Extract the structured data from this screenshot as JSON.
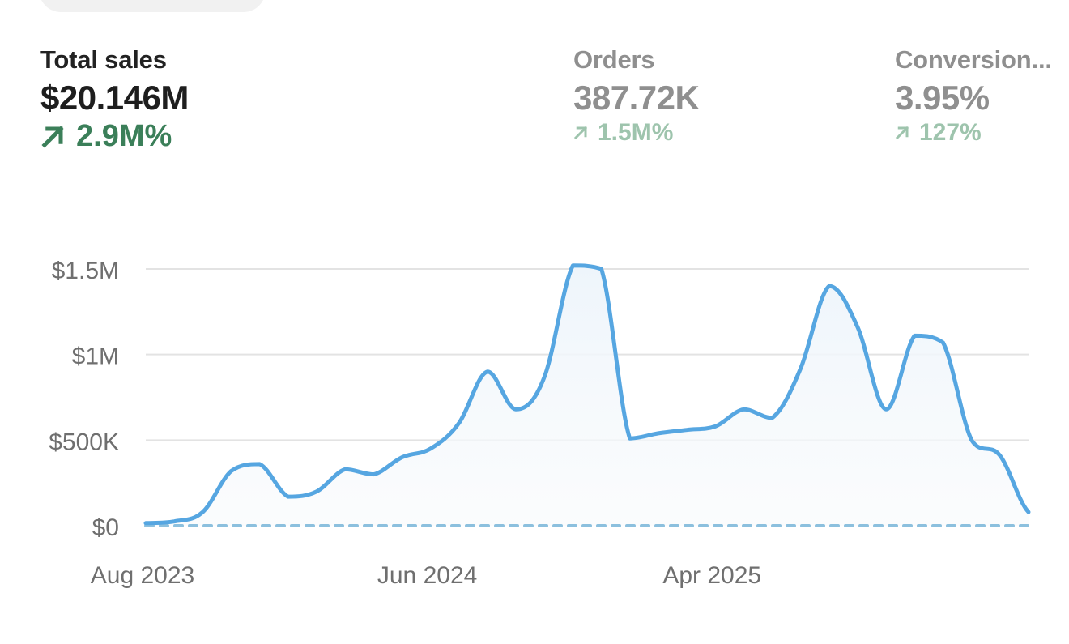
{
  "metrics": {
    "sales": {
      "label": "Total sales",
      "value": "$20.146M",
      "change": "2.9M%"
    },
    "orders": {
      "label": "Orders",
      "value": "387.72K",
      "change": "1.5M%"
    },
    "conversion": {
      "label": "Conversion...",
      "value": "3.95%",
      "change": "127%"
    }
  },
  "icons": {
    "trend": "arrow-up-right-icon"
  },
  "colors": {
    "line": "#56a6e1",
    "fill": "#eef5fb",
    "baseline": "#8cc0de",
    "grid": "#e3e3e3",
    "axis_text": "#6f6f6f",
    "positive_primary": "#3b7f59",
    "positive_muted": "#9ec4ad"
  },
  "chart_data": {
    "type": "area",
    "title": "",
    "xlabel": "",
    "ylabel": "",
    "ylim": [
      0,
      1500000
    ],
    "y_ticks": [
      0,
      500000,
      1000000,
      1500000
    ],
    "y_tick_labels": [
      "$0",
      "$500K",
      "$1M",
      "$1.5M"
    ],
    "x_tick_labels": [
      "Aug 2023",
      "Jun 2024",
      "Apr 2025"
    ],
    "x_tick_index": [
      0,
      10,
      20
    ],
    "grid": true,
    "legend": "none",
    "x": [
      "2023-08",
      "2023-09",
      "2023-10",
      "2023-11",
      "2023-12",
      "2024-01",
      "2024-02",
      "2024-03",
      "2024-04",
      "2024-05",
      "2024-06",
      "2024-07",
      "2024-08",
      "2024-09",
      "2024-10",
      "2024-11",
      "2024-12",
      "2025-01",
      "2025-02",
      "2025-03",
      "2025-04",
      "2025-05",
      "2025-06",
      "2025-07",
      "2025-08",
      "2025-09",
      "2025-10",
      "2025-11",
      "2025-12",
      "2026-01",
      "2026-02",
      "2026-03"
    ],
    "series": [
      {
        "values": [
          15000,
          25000,
          80000,
          320000,
          360000,
          170000,
          200000,
          330000,
          300000,
          400000,
          450000,
          600000,
          900000,
          680000,
          870000,
          1520000,
          1500000,
          510000,
          540000,
          560000,
          580000,
          680000,
          630000,
          920000,
          1400000,
          1160000,
          680000,
          1110000,
          1070000,
          500000,
          410000,
          80000
        ]
      }
    ]
  }
}
